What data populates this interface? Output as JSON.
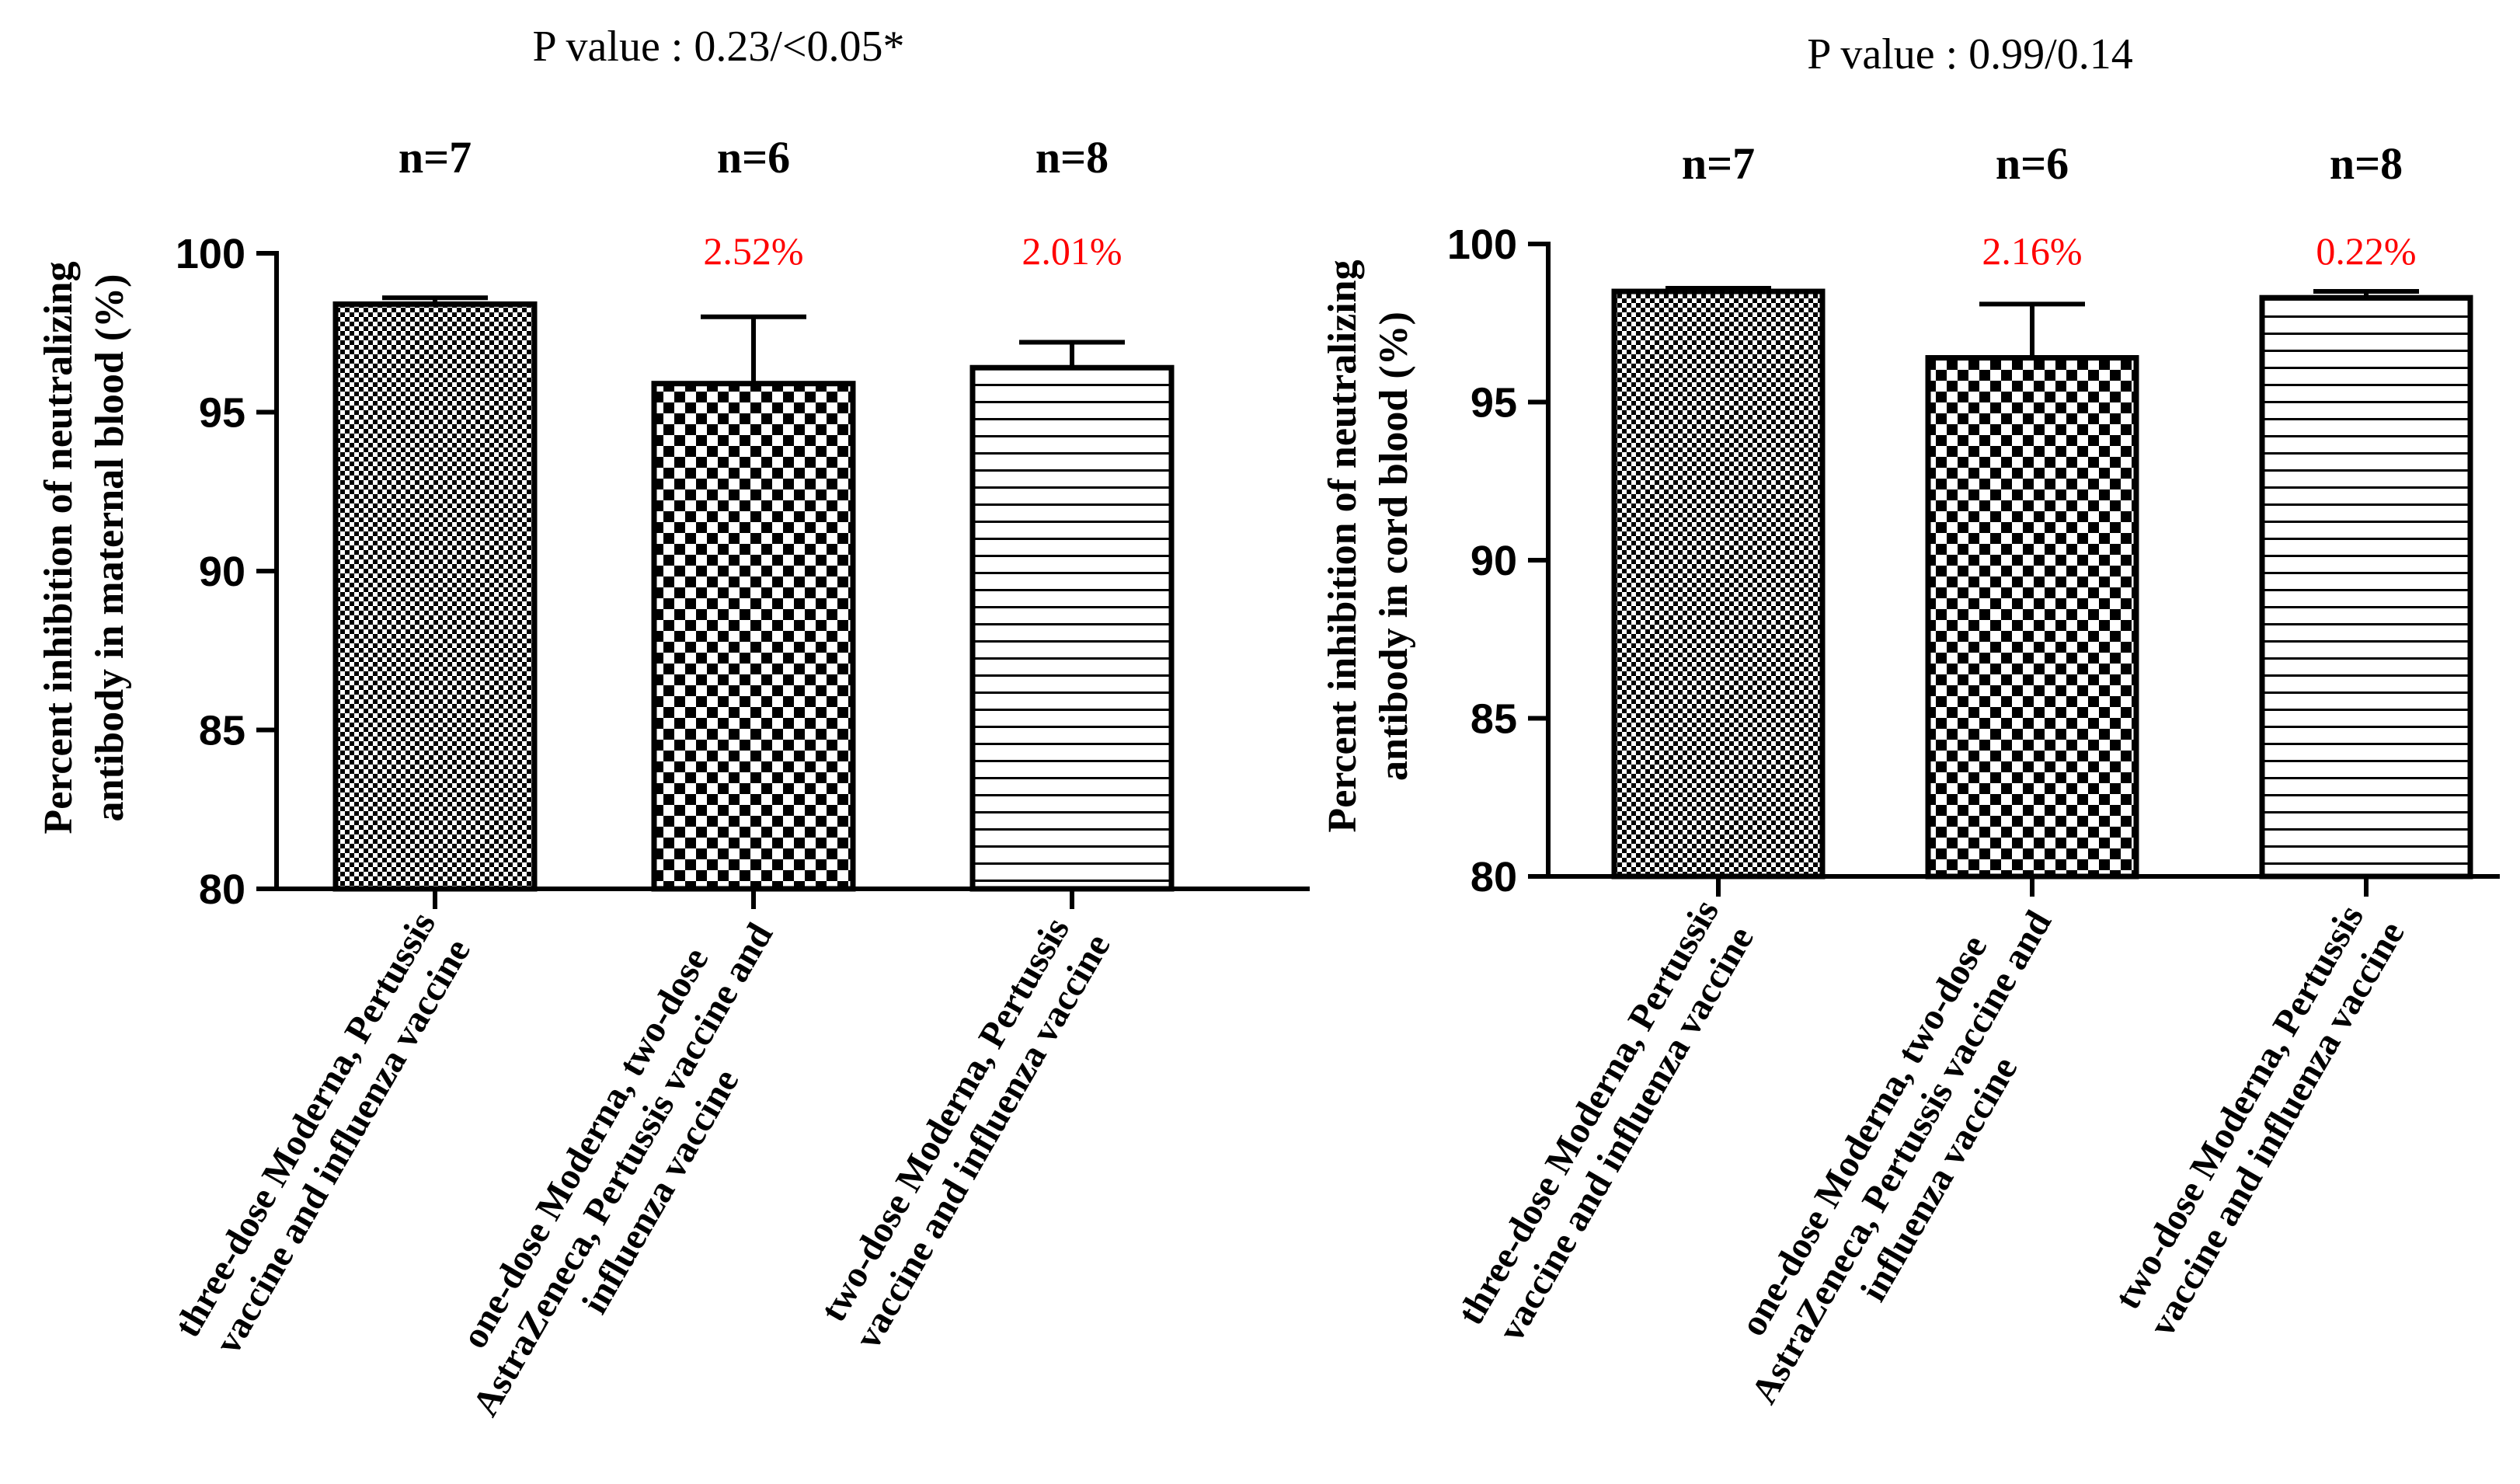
{
  "chart_data": [
    {
      "type": "bar",
      "id": "maternal",
      "p_value_label": "P value : 0.23/<0.05*",
      "ylabel_line1": "Percent inhibition of neutralizing",
      "ylabel_line2": "antibody in maternal blood (%)",
      "ylim": [
        80,
        100
      ],
      "yticks": [
        80,
        85,
        90,
        95,
        100
      ],
      "grid": false,
      "categories": [
        [
          "three-dose Moderna, Pertussis",
          "vaccine and influenza vaccine"
        ],
        [
          "one-dose Moderna, two-dose",
          "AstraZeneca, Pertussis vaccine and",
          "influenza vaccine"
        ],
        [
          "two-dose Moderna, Pertussis",
          "vaccine and influenza vaccine"
        ]
      ],
      "n_labels": [
        "n=7",
        "n=6",
        "n=8"
      ],
      "values": [
        98.4,
        95.9,
        96.4
      ],
      "error": [
        0.2,
        2.1,
        0.8
      ],
      "annotations": [
        "",
        "2.52%",
        "2.01%"
      ],
      "patterns": [
        "fine-check",
        "coarse-check",
        "hlines"
      ]
    },
    {
      "type": "bar",
      "id": "cord",
      "p_value_label": "P value : 0.99/0.14",
      "ylabel_line1": "Percent inhibition of neutralizing",
      "ylabel_line2": "antibody in cord blood (%)",
      "ylim": [
        80,
        100
      ],
      "yticks": [
        80,
        85,
        90,
        95,
        100
      ],
      "grid": false,
      "categories": [
        [
          "three-dose Moderna, Pertussis",
          "vaccine and influenza vaccine"
        ],
        [
          "one-dose Moderna, two-dose",
          "AstraZeneca, Pertussis vaccine and",
          "influenza vaccine"
        ],
        [
          "two-dose Moderna, Pertussis",
          "vaccine and influenza vaccine"
        ]
      ],
      "n_labels": [
        "n=7",
        "n=6",
        "n=8"
      ],
      "values": [
        98.5,
        96.4,
        98.3
      ],
      "error": [
        0.1,
        1.7,
        0.2
      ],
      "annotations": [
        "",
        "2.16%",
        "0.22%"
      ],
      "patterns": [
        "fine-check",
        "coarse-check",
        "hlines"
      ]
    }
  ],
  "colors": {
    "axis": "#000000",
    "annotation": "#ff0000",
    "bar_fill": "#ffffff"
  }
}
